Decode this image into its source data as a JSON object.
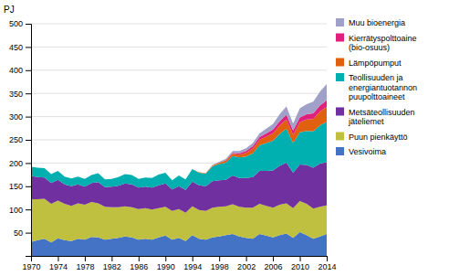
{
  "chart_data": {
    "type": "area",
    "stacked": true,
    "grid": true,
    "legend": "right",
    "y_label": "PJ",
    "x": [
      1970,
      1971,
      1972,
      1973,
      1974,
      1975,
      1976,
      1977,
      1978,
      1979,
      1980,
      1981,
      1982,
      1983,
      1984,
      1985,
      1986,
      1987,
      1988,
      1989,
      1990,
      1991,
      1992,
      1993,
      1994,
      1995,
      1996,
      1997,
      1998,
      1999,
      2000,
      2001,
      2002,
      2003,
      2004,
      2005,
      2006,
      2007,
      2008,
      2009,
      2010,
      2011,
      2012,
      2013,
      2014
    ],
    "xlim": [
      1970,
      2014
    ],
    "xticks": [
      1970,
      1974,
      1978,
      1982,
      1986,
      1990,
      1994,
      1998,
      2002,
      2006,
      2010,
      2014
    ],
    "ylim": [
      0,
      500
    ],
    "yticks": [
      50,
      100,
      150,
      200,
      250,
      300,
      350,
      400,
      450,
      500
    ],
    "series": [
      {
        "name": "Vesivoima",
        "color": "#4472c4",
        "values": [
          30,
          34,
          37,
          29,
          38,
          34,
          32,
          37,
          35,
          41,
          40,
          35,
          37,
          39,
          42,
          40,
          35,
          37,
          35,
          40,
          44,
          35,
          39,
          32,
          45,
          37,
          35,
          40,
          42,
          45,
          47,
          42,
          39,
          37,
          47,
          44,
          40,
          45,
          48,
          39,
          51,
          45,
          37,
          42,
          47
        ]
      },
      {
        "name": "Puun pienkäyttö",
        "color": "#c0c040",
        "values": [
          92,
          88,
          86,
          83,
          81,
          78,
          76,
          76,
          75,
          75,
          73,
          71,
          68,
          66,
          65,
          65,
          66,
          66,
          65,
          63,
          62,
          62,
          62,
          61,
          62,
          62,
          62,
          64,
          64,
          62,
          64,
          64,
          65,
          67,
          65,
          64,
          64,
          65,
          65,
          64,
          67,
          67,
          65,
          64,
          62
        ]
      },
      {
        "name": "Metsäteollisuuden\njäteliemet",
        "color": "#7030a0",
        "values": [
          50,
          48,
          46,
          45,
          45,
          42,
          42,
          41,
          39,
          41,
          46,
          42,
          44,
          46,
          49,
          49,
          46,
          46,
          47,
          49,
          50,
          46,
          49,
          49,
          53,
          53,
          53,
          57,
          57,
          57,
          62,
          62,
          64,
          66,
          71,
          75,
          80,
          84,
          88,
          76,
          79,
          84,
          88,
          93,
          93
        ]
      },
      {
        "name": "Teollisuuden ja\nenergiantuotannon\npuupolttoaineet",
        "color": "#00b0b0",
        "values": [
          20,
          20,
          20,
          19,
          19,
          17,
          17,
          17,
          17,
          17,
          19,
          17,
          17,
          19,
          20,
          20,
          19,
          20,
          21,
          23,
          23,
          20,
          23,
          23,
          27,
          27,
          27,
          32,
          35,
          37,
          42,
          44,
          46,
          51,
          55,
          60,
          64,
          69,
          73,
          64,
          69,
          73,
          78,
          82,
          87
        ]
      },
      {
        "name": "Lämpöpumput",
        "color": "#e06010",
        "values": [
          0,
          0,
          0,
          0,
          0,
          0,
          0,
          0,
          0,
          0,
          0,
          0,
          0,
          0,
          0,
          0,
          0,
          0,
          0,
          0,
          0,
          0,
          0,
          0,
          0,
          1,
          1,
          2,
          3,
          4,
          5,
          6,
          8,
          10,
          12,
          14,
          16,
          18,
          20,
          18,
          22,
          25,
          27,
          30,
          32
        ]
      },
      {
        "name": "Kierrätyspolttoaine\n(bio-osuus)",
        "color": "#e0207a",
        "values": [
          0,
          0,
          0,
          0,
          0,
          0,
          0,
          0,
          0,
          0,
          0,
          0,
          0,
          0,
          0,
          0,
          0,
          0,
          0,
          0,
          0,
          0,
          0,
          0,
          0,
          0,
          0,
          0,
          0,
          1,
          2,
          3,
          4,
          5,
          6,
          7,
          8,
          9,
          10,
          9,
          10,
          11,
          12,
          13,
          14
        ]
      },
      {
        "name": "Muu bioenergia",
        "color": "#a0a0c8",
        "values": [
          0,
          0,
          0,
          0,
          0,
          0,
          0,
          0,
          0,
          0,
          0,
          0,
          0,
          0,
          0,
          0,
          0,
          0,
          0,
          0,
          0,
          0,
          0,
          0,
          0,
          0,
          0,
          1,
          2,
          3,
          4,
          5,
          6,
          7,
          8,
          10,
          12,
          15,
          18,
          15,
          20,
          22,
          25,
          30,
          35
        ]
      }
    ]
  }
}
